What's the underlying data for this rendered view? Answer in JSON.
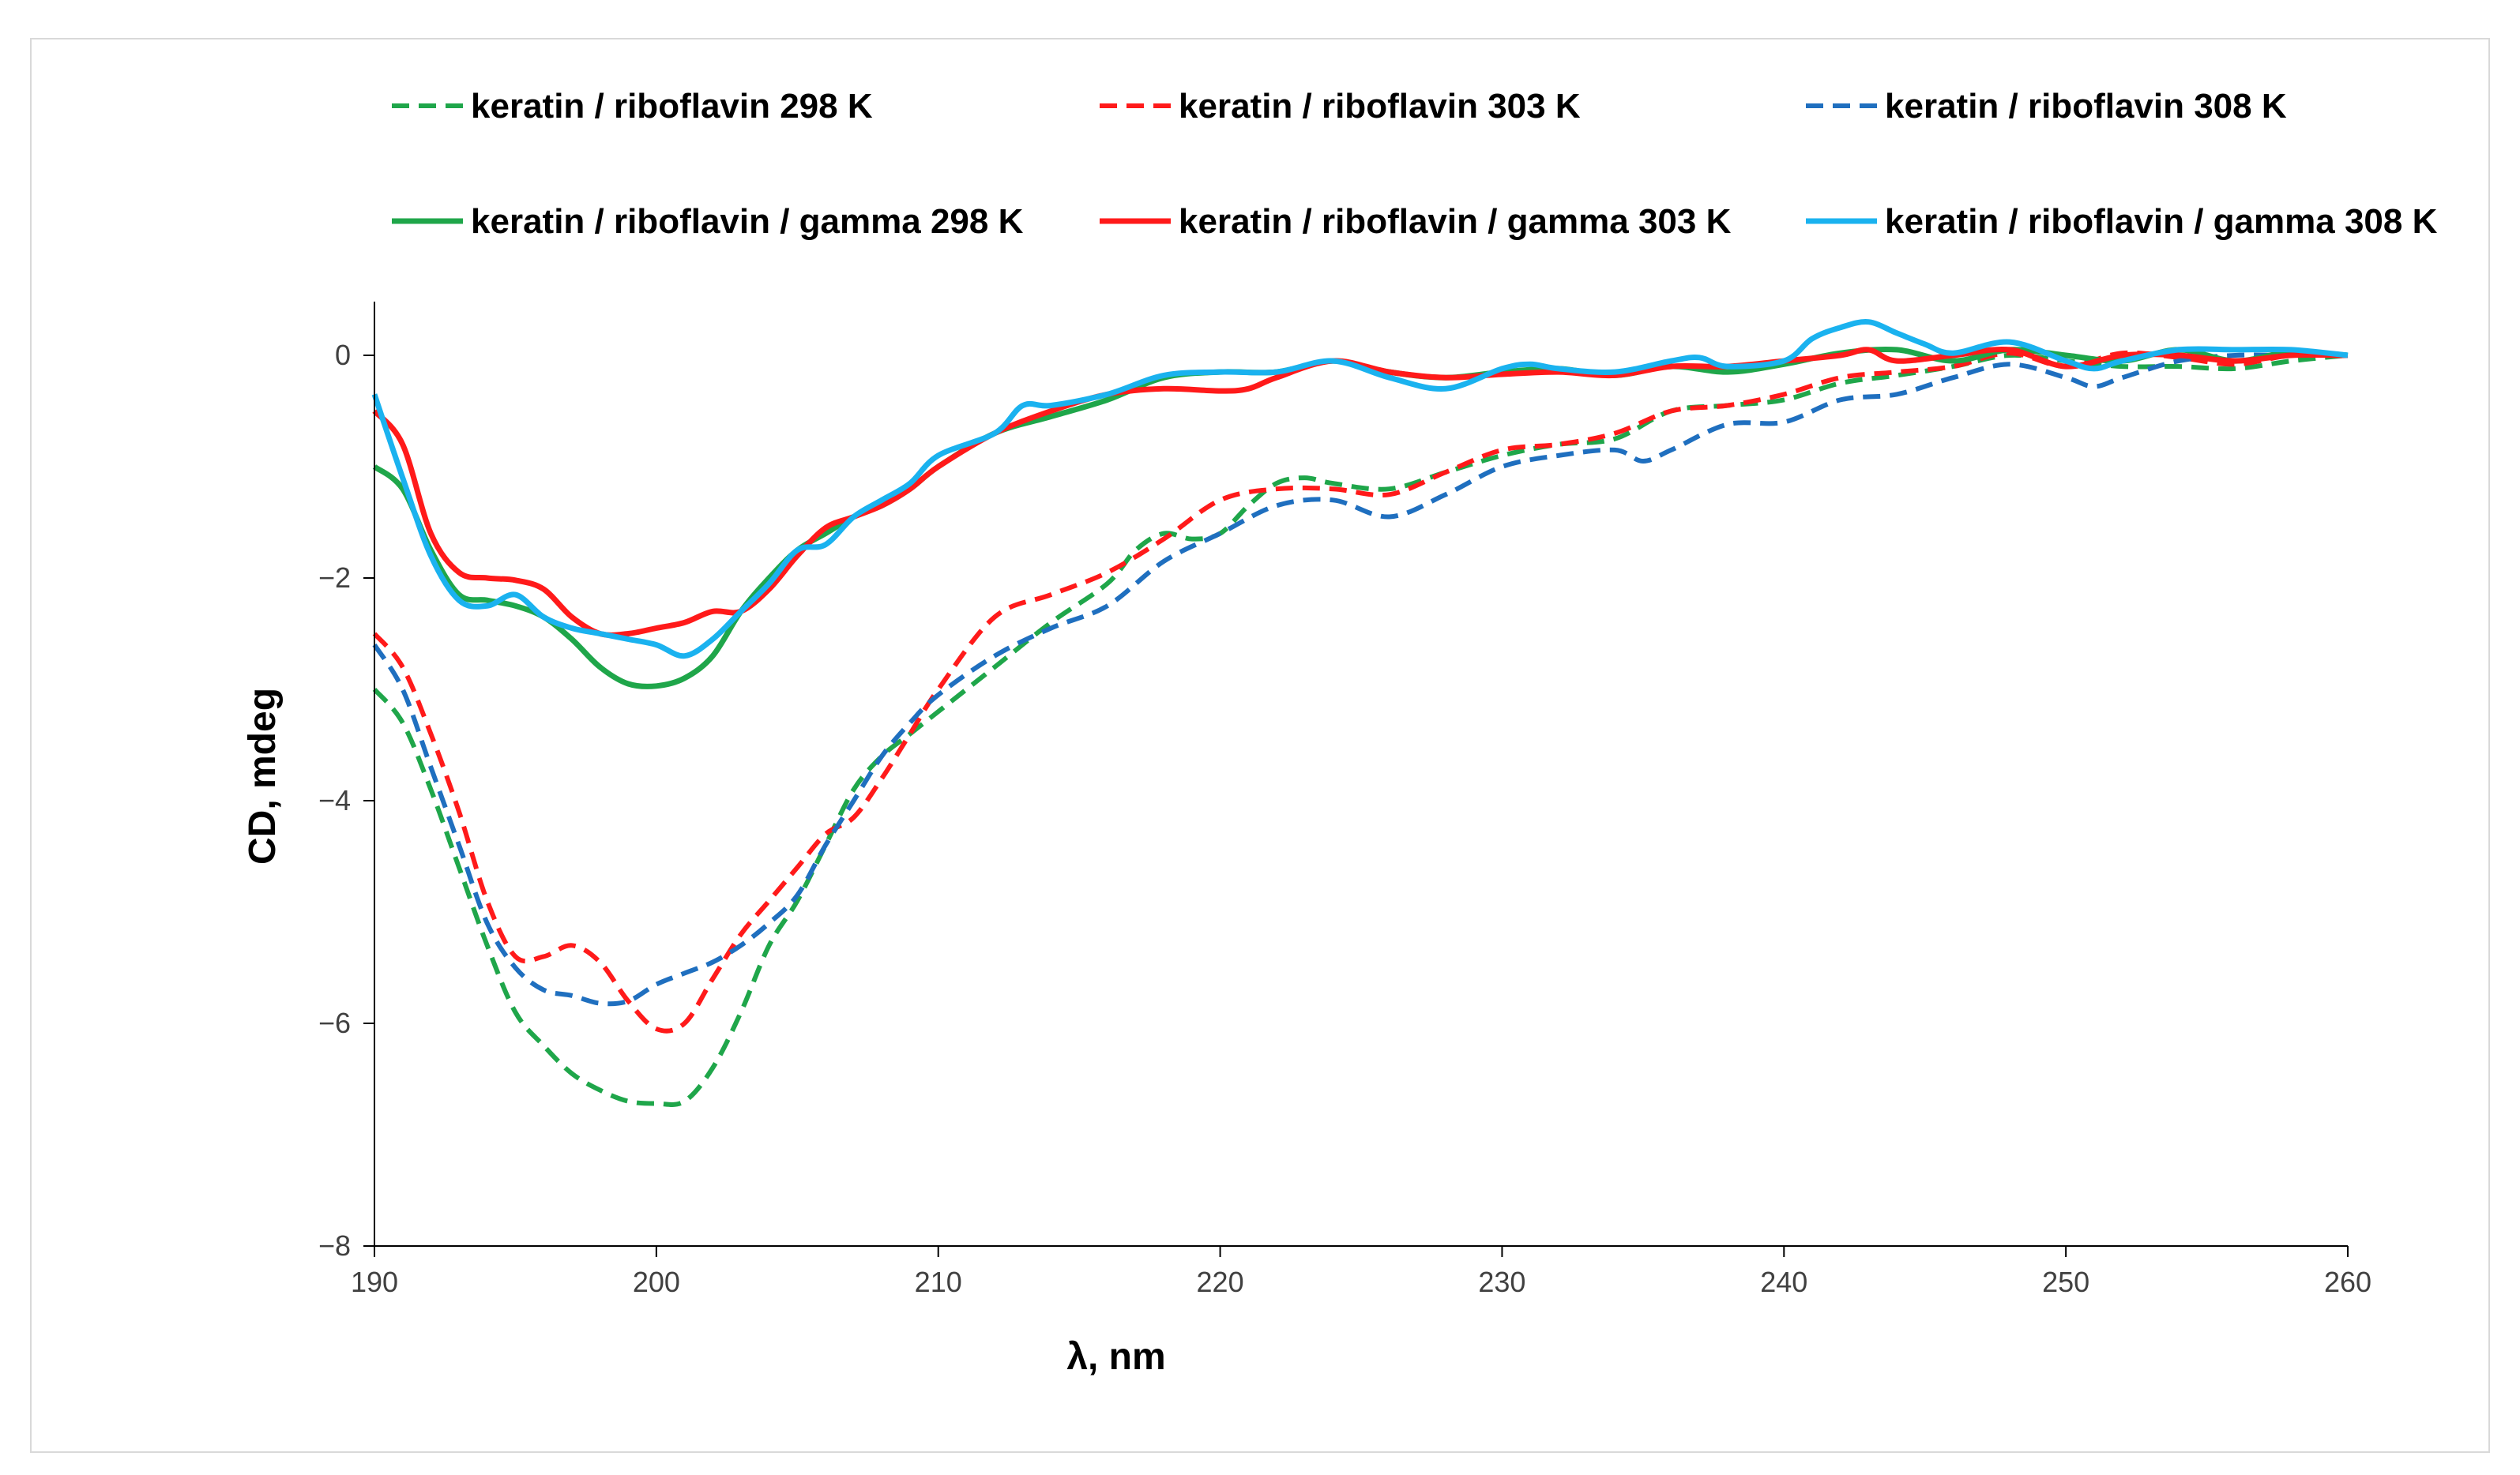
{
  "chart_data": {
    "type": "line",
    "title": "",
    "xlabel": "λ, nm",
    "ylabel": "CD, mdeg",
    "xlim": [
      190,
      260
    ],
    "ylim": [
      -8,
      0.5
    ],
    "xticks": [
      190,
      200,
      210,
      220,
      230,
      240,
      250,
      260
    ],
    "yticks": [
      0,
      -2,
      -4,
      -6,
      -8
    ],
    "ytick_labels": [
      "0",
      "−2",
      "−4",
      "−6",
      "−8"
    ],
    "legend_position": "top",
    "series": [
      {
        "name": "keratin / riboflavin 298 K",
        "color": "#1fa64a",
        "style": "dashed",
        "x": [
          190,
          191,
          192,
          193,
          194,
          195,
          196,
          197,
          198,
          199,
          200,
          201,
          202,
          203,
          204,
          205,
          206,
          207,
          208,
          209,
          210,
          212,
          214,
          216,
          217,
          218,
          219,
          220,
          221,
          222,
          223,
          224,
          226,
          228,
          230,
          232,
          234,
          236,
          238,
          240,
          242,
          244,
          246,
          248,
          250,
          252,
          254,
          256,
          258,
          260
        ],
        "y": [
          -3.0,
          -3.3,
          -3.9,
          -4.6,
          -5.3,
          -5.9,
          -6.2,
          -6.45,
          -6.6,
          -6.7,
          -6.72,
          -6.7,
          -6.4,
          -5.9,
          -5.3,
          -4.9,
          -4.4,
          -3.9,
          -3.6,
          -3.4,
          -3.2,
          -2.8,
          -2.4,
          -2.05,
          -1.75,
          -1.6,
          -1.65,
          -1.6,
          -1.35,
          -1.15,
          -1.1,
          -1.15,
          -1.2,
          -1.05,
          -0.9,
          -0.8,
          -0.75,
          -0.5,
          -0.45,
          -0.4,
          -0.25,
          -0.18,
          -0.1,
          0.0,
          -0.05,
          -0.1,
          -0.1,
          -0.12,
          -0.05,
          0.0
        ]
      },
      {
        "name": "keratin / riboflavin 303 K",
        "color": "#ff1a1a",
        "style": "dashed",
        "x": [
          190,
          191,
          192,
          193,
          194,
          195,
          196,
          197,
          198,
          199,
          200,
          201,
          202,
          203,
          204,
          205,
          206,
          207,
          208,
          209,
          210,
          212,
          214,
          216,
          218,
          220,
          222,
          224,
          226,
          228,
          230,
          232,
          234,
          236,
          238,
          240,
          242,
          244,
          246,
          248,
          250,
          252,
          254,
          256,
          258,
          260
        ],
        "y": [
          -2.5,
          -2.8,
          -3.4,
          -4.1,
          -4.9,
          -5.4,
          -5.4,
          -5.3,
          -5.45,
          -5.8,
          -6.05,
          -6.0,
          -5.6,
          -5.2,
          -4.9,
          -4.6,
          -4.3,
          -4.15,
          -3.8,
          -3.4,
          -3.0,
          -2.35,
          -2.15,
          -1.95,
          -1.65,
          -1.3,
          -1.2,
          -1.2,
          -1.25,
          -1.05,
          -0.85,
          -0.8,
          -0.7,
          -0.5,
          -0.45,
          -0.35,
          -0.2,
          -0.15,
          -0.1,
          0.02,
          -0.1,
          0.02,
          -0.02,
          -0.08,
          0.0,
          0.0
        ]
      },
      {
        "name": "keratin / riboflavin 308 K",
        "color": "#1f6fbf",
        "style": "dashed",
        "x": [
          190,
          191,
          192,
          193,
          194,
          195,
          196,
          197,
          198,
          199,
          200,
          201,
          202,
          203,
          204,
          205,
          206,
          207,
          208,
          209,
          210,
          212,
          214,
          216,
          218,
          220,
          222,
          224,
          226,
          228,
          230,
          232,
          234,
          235,
          236,
          238,
          240,
          242,
          244,
          246,
          248,
          250,
          251,
          252,
          254,
          256,
          258,
          260
        ],
        "y": [
          -2.6,
          -3.0,
          -3.7,
          -4.4,
          -5.1,
          -5.5,
          -5.7,
          -5.75,
          -5.82,
          -5.8,
          -5.65,
          -5.55,
          -5.45,
          -5.3,
          -5.1,
          -4.85,
          -4.4,
          -4.0,
          -3.6,
          -3.3,
          -3.05,
          -2.7,
          -2.45,
          -2.25,
          -1.85,
          -1.6,
          -1.35,
          -1.3,
          -1.45,
          -1.25,
          -1.0,
          -0.9,
          -0.85,
          -0.95,
          -0.85,
          -0.62,
          -0.6,
          -0.4,
          -0.35,
          -0.2,
          -0.08,
          -0.2,
          -0.28,
          -0.2,
          -0.05,
          0.0,
          0.0,
          0.0
        ]
      },
      {
        "name": "keratin / riboflavin / gamma 298 K",
        "color": "#1fa64a",
        "style": "solid",
        "x": [
          190,
          191,
          192,
          193,
          194,
          195,
          196,
          197,
          198,
          199,
          200,
          201,
          202,
          203,
          204,
          205,
          206,
          207,
          208,
          209,
          210,
          212,
          214,
          216,
          218,
          220,
          222,
          224,
          226,
          228,
          230,
          232,
          234,
          236,
          238,
          240,
          242,
          244,
          246,
          248,
          250,
          252,
          254,
          256,
          258,
          260
        ],
        "y": [
          -1.0,
          -1.2,
          -1.75,
          -2.15,
          -2.2,
          -2.25,
          -2.35,
          -2.55,
          -2.8,
          -2.95,
          -2.97,
          -2.9,
          -2.7,
          -2.3,
          -2.0,
          -1.75,
          -1.6,
          -1.45,
          -1.35,
          -1.2,
          -1.0,
          -0.7,
          -0.55,
          -0.4,
          -0.2,
          -0.15,
          -0.15,
          -0.05,
          -0.15,
          -0.2,
          -0.15,
          -0.12,
          -0.18,
          -0.1,
          -0.15,
          -0.08,
          0.02,
          0.05,
          -0.05,
          0.05,
          0.0,
          -0.05,
          0.05,
          -0.05,
          0.03,
          0.0
        ]
      },
      {
        "name": "keratin / riboflavin / gamma 303 K",
        "color": "#ff1a1a",
        "style": "solid",
        "x": [
          190,
          191,
          192,
          193,
          194,
          195,
          196,
          197,
          198,
          199,
          200,
          201,
          202,
          203,
          204,
          205,
          206,
          207,
          208,
          209,
          210,
          212,
          214,
          216,
          218,
          220,
          221,
          222,
          224,
          226,
          228,
          230,
          232,
          234,
          236,
          238,
          240,
          242,
          243,
          244,
          246,
          248,
          250,
          252,
          254,
          256,
          258,
          260
        ],
        "y": [
          -0.5,
          -0.8,
          -1.6,
          -1.95,
          -2.0,
          -2.02,
          -2.1,
          -2.35,
          -2.5,
          -2.5,
          -2.45,
          -2.4,
          -2.3,
          -2.3,
          -2.1,
          -1.8,
          -1.55,
          -1.45,
          -1.35,
          -1.2,
          -1.0,
          -0.7,
          -0.5,
          -0.35,
          -0.3,
          -0.32,
          -0.3,
          -0.2,
          -0.05,
          -0.15,
          -0.2,
          -0.17,
          -0.15,
          -0.18,
          -0.1,
          -0.1,
          -0.05,
          0.0,
          0.05,
          -0.05,
          0.0,
          0.05,
          -0.1,
          0.0,
          0.0,
          -0.05,
          0.0,
          0.0
        ]
      },
      {
        "name": "keratin / riboflavin / gamma 308 K",
        "color": "#1ab2ef",
        "style": "solid",
        "x": [
          190,
          191,
          192,
          193,
          194,
          195,
          196,
          197,
          198,
          199,
          200,
          201,
          202,
          203,
          204,
          205,
          206,
          207,
          208,
          209,
          210,
          212,
          213,
          214,
          216,
          218,
          220,
          222,
          224,
          226,
          228,
          230,
          231,
          232,
          234,
          236,
          237,
          238,
          240,
          241,
          242,
          243,
          244,
          245,
          246,
          248,
          250,
          251,
          252,
          254,
          256,
          258,
          260
        ],
        "y": [
          -0.35,
          -1.1,
          -1.8,
          -2.2,
          -2.25,
          -2.15,
          -2.35,
          -2.45,
          -2.5,
          -2.55,
          -2.6,
          -2.7,
          -2.55,
          -2.3,
          -2.05,
          -1.75,
          -1.7,
          -1.45,
          -1.3,
          -1.15,
          -0.9,
          -0.7,
          -0.45,
          -0.45,
          -0.35,
          -0.18,
          -0.15,
          -0.15,
          -0.05,
          -0.2,
          -0.3,
          -0.12,
          -0.08,
          -0.12,
          -0.15,
          -0.05,
          -0.02,
          -0.1,
          -0.05,
          0.15,
          0.25,
          0.3,
          0.2,
          0.1,
          0.02,
          0.12,
          -0.05,
          -0.12,
          -0.05,
          0.05,
          0.05,
          0.05,
          0.0
        ]
      }
    ]
  }
}
